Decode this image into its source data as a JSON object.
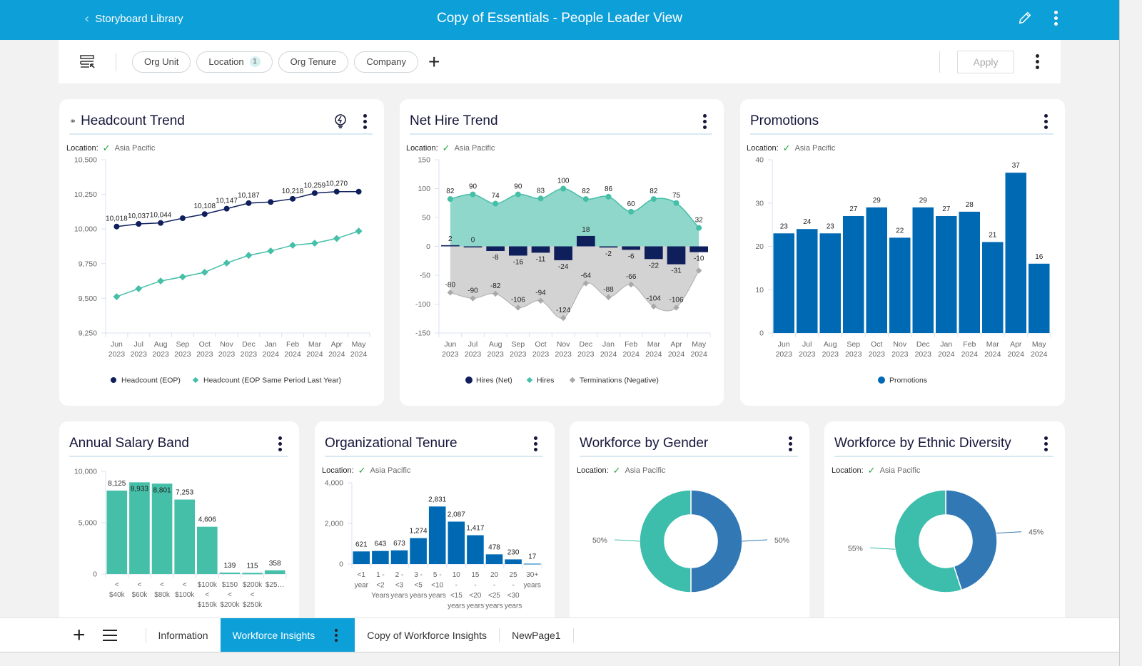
{
  "header": {
    "back_label": "Storyboard Library",
    "title": "Copy of Essentials - People Leader View"
  },
  "filters": {
    "chips": [
      {
        "label": "Org Unit",
        "badge": ""
      },
      {
        "label": "Location",
        "badge": "1"
      },
      {
        "label": "Org Tenure",
        "badge": ""
      },
      {
        "label": "Company",
        "badge": ""
      }
    ],
    "apply_label": "Apply"
  },
  "location_filter": {
    "label": "Location:",
    "value": "Asia Pacific"
  },
  "months": [
    "Jun",
    "Jul",
    "Aug",
    "Sep",
    "Oct",
    "Nov",
    "Dec",
    "Jan",
    "Feb",
    "Mar",
    "Apr",
    "May"
  ],
  "years": [
    "2023",
    "2023",
    "2023",
    "2023",
    "2023",
    "2023",
    "2023",
    "2024",
    "2024",
    "2024",
    "2024",
    "2024"
  ],
  "cards": {
    "headcount": {
      "title": "Headcount Trend"
    },
    "nethire": {
      "title": "Net Hire Trend"
    },
    "promotions": {
      "title": "Promotions"
    },
    "salary": {
      "title": "Annual Salary Band"
    },
    "tenure": {
      "title": "Organizational Tenure"
    },
    "gender": {
      "title": "Workforce by Gender"
    },
    "ethnic": {
      "title": "Workforce by Ethnic Diversity"
    }
  },
  "colors": {
    "navy": "#0f1f5c",
    "teal": "#45bfa8",
    "teal_area": "#8fd6cb",
    "gray_area": "#d3d3d3",
    "gray_marker": "#a9a9a9",
    "blue": "#0069b4",
    "pie_blue": "#3178b5",
    "pie_teal": "#3dbdab"
  },
  "chart_data": [
    {
      "id": "headcount",
      "type": "line",
      "title": "Headcount Trend",
      "ylim": [
        9250,
        10500
      ],
      "yticks": [
        "9,250",
        "9,500",
        "9,750",
        "10,000",
        "10,250",
        "10,500"
      ],
      "ytick_values": [
        9250,
        9500,
        9750,
        10000,
        10250,
        10500
      ],
      "legend": "bottom",
      "series": [
        {
          "name": "Headcount (EOP)",
          "values": [
            10018,
            10037,
            10044,
            10078,
            10108,
            10147,
            10187,
            10195,
            10218,
            10259,
            10270,
            10270
          ],
          "labels": [
            "10,018",
            "10,037",
            "10,044",
            "",
            "10,108",
            "10,147",
            "10,187",
            "",
            "10,218",
            "10,259",
            "10,270",
            ""
          ]
        },
        {
          "name": "Headcount (EOP Same Period Last Year)",
          "values": [
            9512,
            9570,
            9625,
            9655,
            9688,
            9755,
            9810,
            9842,
            9883,
            9898,
            9932,
            9985
          ]
        }
      ]
    },
    {
      "id": "nethire",
      "type": "bar",
      "title": "Net Hire Trend",
      "ylim": [
        -150,
        150
      ],
      "yticks": [
        "-150",
        "-100",
        "-50",
        "0",
        "50",
        "100",
        "150"
      ],
      "ytick_values": [
        -150,
        -100,
        -50,
        0,
        50,
        100,
        150
      ],
      "legend": "bottom",
      "series": [
        {
          "name": "Hires (Net)",
          "values": [
            2,
            0,
            -8,
            -16,
            -11,
            -24,
            18,
            -2,
            -6,
            -22,
            -31,
            -10
          ]
        },
        {
          "name": "Hires",
          "values": [
            82,
            90,
            74,
            90,
            83,
            100,
            82,
            86,
            60,
            82,
            75,
            32
          ]
        },
        {
          "name": "Terminations (Negative)",
          "values": [
            -80,
            -90,
            -82,
            -106,
            -94,
            -124,
            -64,
            -88,
            -66,
            -104,
            -106,
            -42
          ],
          "labels": [
            "-80",
            "-90",
            "-82",
            "-106",
            "-94",
            "-124",
            "-64",
            "-88",
            "-66",
            "-104",
            "-106",
            ""
          ]
        }
      ]
    },
    {
      "id": "promotions",
      "type": "bar",
      "title": "Promotions",
      "ylim": [
        0,
        40
      ],
      "yticks": [
        "0",
        "10",
        "20",
        "30",
        "40"
      ],
      "ytick_values": [
        0,
        10,
        20,
        30,
        40
      ],
      "legend": "bottom",
      "series": [
        {
          "name": "Promotions",
          "values": [
            23,
            24,
            23,
            27,
            29,
            22,
            29,
            27,
            28,
            21,
            37,
            16
          ]
        }
      ]
    },
    {
      "id": "salary",
      "type": "bar",
      "title": "Annual Salary Band",
      "ylim": [
        0,
        10000
      ],
      "yticks": [
        "0",
        "5,000",
        "10,000"
      ],
      "ytick_values": [
        0,
        5000,
        10000
      ],
      "categories": [
        [
          "<",
          "$40k"
        ],
        [
          "<",
          "$60k"
        ],
        [
          "<",
          "$80k"
        ],
        [
          "<",
          "$100k"
        ],
        [
          "$100k",
          "<",
          "$150k"
        ],
        [
          "$150",
          "<",
          "$200k"
        ],
        [
          "$200k",
          "<",
          "$250k"
        ],
        [
          "$25…"
        ]
      ],
      "values": [
        8125,
        8933,
        8801,
        7253,
        4606,
        139,
        115,
        358
      ],
      "labels": [
        "8,125",
        "8,933",
        "8,801",
        "7,253",
        "4,606",
        "139",
        "115",
        "358"
      ]
    },
    {
      "id": "tenure",
      "type": "bar",
      "title": "Organizational Tenure",
      "ylim": [
        0,
        4000
      ],
      "yticks": [
        "0",
        "2,000",
        "4,000"
      ],
      "ytick_values": [
        0,
        2000,
        4000
      ],
      "categories": [
        [
          "<1",
          "year"
        ],
        [
          "1 -",
          "<2",
          "Years"
        ],
        [
          "2 -",
          "<3",
          "years"
        ],
        [
          "3 -",
          "<5",
          "years"
        ],
        [
          "5 -",
          "<10",
          "years"
        ],
        [
          "10",
          "-",
          "<15",
          "years"
        ],
        [
          "15",
          "-",
          "<20",
          "years"
        ],
        [
          "20",
          "-",
          "<25",
          "years"
        ],
        [
          "25",
          "-",
          "<30",
          "years"
        ],
        [
          "30+",
          "years"
        ]
      ],
      "values": [
        621,
        643,
        673,
        1274,
        2831,
        2087,
        1417,
        478,
        230,
        17
      ],
      "labels": [
        "621",
        "643",
        "673",
        "1,274",
        "2,831",
        "2,087",
        "1,417",
        "478",
        "230",
        "17"
      ]
    },
    {
      "id": "gender",
      "type": "pie",
      "title": "Workforce by Gender",
      "slices": [
        {
          "label": "50%",
          "value": 50,
          "color": "#3178b5"
        },
        {
          "label": "50%",
          "value": 50,
          "color": "#3dbdab"
        }
      ]
    },
    {
      "id": "ethnic",
      "type": "pie",
      "title": "Workforce by Ethnic Diversity",
      "slices": [
        {
          "label": "45%",
          "value": 45,
          "color": "#3178b5"
        },
        {
          "label": "55%",
          "value": 55,
          "color": "#3dbdab"
        }
      ]
    }
  ],
  "bottom_tabs": {
    "tabs": [
      {
        "label": "Information",
        "active": false
      },
      {
        "label": "Workforce Insights",
        "active": true
      },
      {
        "label": "Copy of Workforce Insights",
        "active": false
      },
      {
        "label": "NewPage1",
        "active": false
      }
    ]
  }
}
